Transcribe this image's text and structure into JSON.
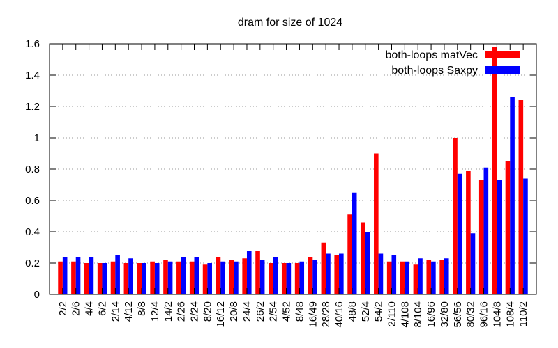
{
  "chart_data": {
    "type": "bar",
    "title": "dram for size of 1024",
    "xlabel": "",
    "ylabel": "",
    "ylim": [
      0,
      1.6
    ],
    "yticks": [
      "0",
      "0.2",
      "0.4",
      "0.6",
      "0.8",
      "1",
      "1.2",
      "1.4",
      "1.6"
    ],
    "grid": "horizontal dotted",
    "legend_position": "top-right",
    "categories": [
      "2/2",
      "2/6",
      "4/4",
      "6/2",
      "2/14",
      "4/12",
      "8/8",
      "12/4",
      "14/2",
      "2/26",
      "2/24",
      "8/20",
      "16/12",
      "20/8",
      "24/4",
      "26/2",
      "2/54",
      "4/52",
      "8/48",
      "16/49",
      "28/28",
      "40/16",
      "48/8",
      "52/4",
      "54/2",
      "2/110",
      "4/108",
      "8/104",
      "16/96",
      "32/80",
      "56/56",
      "80/32",
      "96/16",
      "104/8",
      "108/4",
      "110/2"
    ],
    "series": [
      {
        "name": "both-loops matVec",
        "color": "#ff0000",
        "values": [
          0.21,
          0.21,
          0.2,
          0.2,
          0.21,
          0.2,
          0.2,
          0.21,
          0.22,
          0.21,
          0.21,
          0.19,
          0.24,
          0.22,
          0.23,
          0.28,
          0.2,
          0.2,
          0.2,
          0.24,
          0.33,
          0.25,
          0.51,
          0.46,
          0.9,
          0.21,
          0.21,
          0.19,
          0.22,
          0.22,
          1.0,
          0.79,
          0.73,
          1.58,
          0.85,
          1.24
        ]
      },
      {
        "name": "both-loops Saxpy",
        "color": "#0000ff",
        "values": [
          0.24,
          0.24,
          0.24,
          0.2,
          0.25,
          0.23,
          0.2,
          0.2,
          0.21,
          0.24,
          0.24,
          0.2,
          0.21,
          0.21,
          0.28,
          0.22,
          0.24,
          0.2,
          0.21,
          0.22,
          0.26,
          0.26,
          0.65,
          0.4,
          0.26,
          0.25,
          0.21,
          0.23,
          0.21,
          0.23,
          0.77,
          0.39,
          0.81,
          0.73,
          1.26,
          0.74
        ]
      }
    ]
  }
}
